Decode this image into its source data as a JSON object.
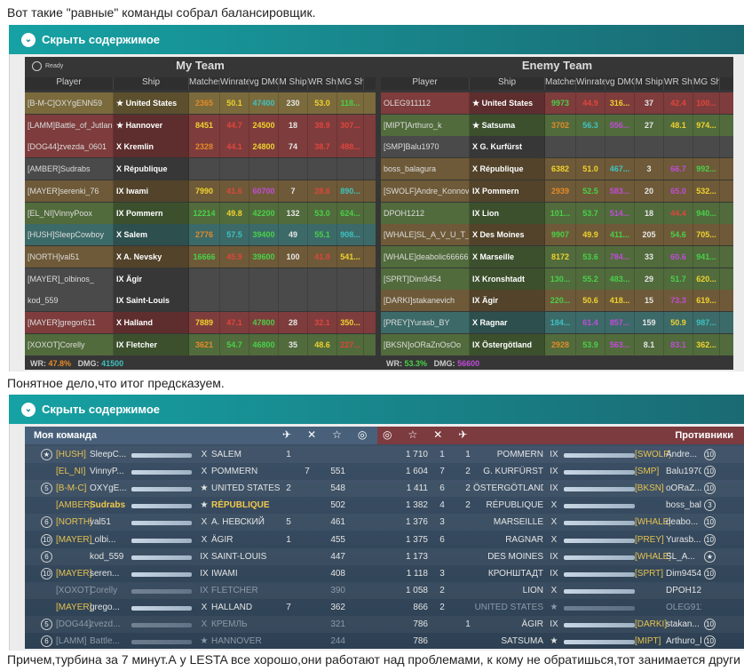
{
  "intro": "Вот такие \"равные\" команды собрал балансировщик.",
  "spoiler_label": "Скрыть содержимое",
  "middle_text": "Понятное дело,что итог предсказуем.",
  "bottom_text": "Причем,турбина за 7 минут.А у LESTA все хорошо,они работают над проблемами, к кому не обратишься,тот занимается други",
  "table1": {
    "ready": "Ready",
    "my_team_title": "My Team",
    "enemy_team_title": "Enemy Team",
    "columns": [
      "Player",
      "Ship",
      "Matches",
      "Winrate",
      "vg DMG",
      "M Ship",
      "WR Ship",
      "MG Shi"
    ],
    "my_footer_wr_label": "WR:",
    "my_footer_wr": "47.8%",
    "my_footer_dmg_label": "DMG:",
    "my_footer_dmg": "41500",
    "enemy_footer_wr_label": "WR:",
    "enemy_footer_wr": "53.3%",
    "enemy_footer_dmg_label": "DMG:",
    "enemy_footer_dmg": "56600",
    "my_rows": [
      {
        "player": "[B-M-C]OXYgENN59",
        "ship": "★ United States",
        "m": "2365",
        "wr": "50.1",
        "dmg": "47400",
        "ms": "230",
        "wrs": "53.0",
        "mg": "118...",
        "bg": "#7a6a3c",
        "wrc": "#f0d22e",
        "dmgc": "#3ec2c0",
        "wrsc": "#f0d22e",
        "mgc": "#49d049",
        "mc": "#e48a2a"
      },
      {
        "player": "[LAMM]Battle_of_Jutland",
        "ship": "★ Hannover",
        "m": "8451",
        "wr": "44.7",
        "dmg": "24500",
        "ms": "18",
        "wrs": "38.9",
        "mg": "307...",
        "bg": "#7e3c3c",
        "wrc": "#e0453d",
        "dmgc": "#f0d22e",
        "wrsc": "#e0453d",
        "mgc": "#e0453d",
        "mc": "#f0d22e"
      },
      {
        "player": "[DOG44]zvezda_0601",
        "ship": "X Kremlin",
        "m": "2328",
        "wr": "44.1",
        "dmg": "24800",
        "ms": "74",
        "wrs": "38.7",
        "mg": "488...",
        "bg": "#7e3c3c",
        "wrc": "#e0453d",
        "dmgc": "#f0d22e",
        "wrsc": "#e0453d",
        "mgc": "#e0453d",
        "mc": "#e48a2a"
      },
      {
        "player": "[AMBER]Sudrabs",
        "ship": "X République",
        "m": "",
        "wr": "",
        "dmg": "",
        "ms": "",
        "wrs": "",
        "mg": "",
        "bg": "#4a4a4a",
        "wrc": "#ccc",
        "dmgc": "#ccc",
        "wrsc": "#ccc",
        "mgc": "#ccc",
        "mc": "#ccc"
      },
      {
        "player": "[MAYER]serenki_76",
        "ship": "IX Iwami",
        "m": "7990",
        "wr": "41.6",
        "dmg": "60700",
        "ms": "7",
        "wrs": "28.6",
        "mg": "890...",
        "bg": "#6e5a38",
        "wrc": "#e0453d",
        "dmgc": "#c04cd8",
        "wrsc": "#e0453d",
        "mgc": "#3ec2c0",
        "mc": "#f0d22e"
      },
      {
        "player": "[EL_NI]VinnyPoox",
        "ship": "IX Pommern",
        "m": "12214",
        "wr": "49.8",
        "dmg": "42200",
        "ms": "132",
        "wrs": "53.0",
        "mg": "624...",
        "bg": "#516b3c",
        "wrc": "#f0d22e",
        "dmgc": "#49d049",
        "wrsc": "#49d049",
        "mgc": "#49d049",
        "mc": "#49d049"
      },
      {
        "player": "[HUSH]SleepCowboy",
        "ship": "X Salem",
        "m": "2776",
        "wr": "57.5",
        "dmg": "39400",
        "ms": "49",
        "wrs": "55.1",
        "mg": "908...",
        "bg": "#3c6a68",
        "wrc": "#3ec2c0",
        "dmgc": "#49d049",
        "wrsc": "#49d049",
        "mgc": "#3ec2c0",
        "mc": "#e48a2a"
      },
      {
        "player": "[NORTH]val51",
        "ship": "X A. Nevsky",
        "m": "16666",
        "wr": "45.9",
        "dmg": "39600",
        "ms": "100",
        "wrs": "41.0",
        "mg": "541...",
        "bg": "#6e5a38",
        "wrc": "#e0453d",
        "dmgc": "#49d049",
        "wrsc": "#e0453d",
        "mgc": "#f0d22e",
        "mc": "#49d049"
      },
      {
        "player": "[MAYER]_olbinos_",
        "ship": "IX Ägir",
        "m": "",
        "wr": "",
        "dmg": "",
        "ms": "",
        "wrs": "",
        "mg": "",
        "bg": "#4a4a4a",
        "wrc": "#ccc",
        "dmgc": "#ccc",
        "wrsc": "#ccc",
        "mgc": "#ccc",
        "mc": "#ccc"
      },
      {
        "player": "kod_559",
        "ship": "IX Saint-Louis",
        "m": "",
        "wr": "",
        "dmg": "",
        "ms": "",
        "wrs": "",
        "mg": "",
        "bg": "#4a4a4a",
        "wrc": "#ccc",
        "dmgc": "#ccc",
        "wrsc": "#ccc",
        "mgc": "#ccc",
        "mc": "#ccc"
      },
      {
        "player": "[MAYER]gregor611",
        "ship": "X Halland",
        "m": "7889",
        "wr": "47.1",
        "dmg": "47800",
        "ms": "28",
        "wrs": "32.1",
        "mg": "350...",
        "bg": "#7e3c3c",
        "wrc": "#e0453d",
        "dmgc": "#49d049",
        "wrsc": "#e0453d",
        "mgc": "#f0d22e",
        "mc": "#f0d22e"
      },
      {
        "player": "[XOXOT]Corelly",
        "ship": "IX Fletcher",
        "m": "3621",
        "wr": "54.7",
        "dmg": "46800",
        "ms": "35",
        "wrs": "48.6",
        "mg": "227...",
        "bg": "#516b3c",
        "wrc": "#49d049",
        "dmgc": "#49d049",
        "wrsc": "#f0d22e",
        "mgc": "#e0453d",
        "mc": "#e48a2a"
      }
    ],
    "enemy_rows": [
      {
        "player": "OLEG911112",
        "ship": "★ United States",
        "m": "9973",
        "wr": "44.9",
        "dmg": "316...",
        "ms": "37",
        "wrs": "42.4",
        "mg": "100...",
        "bg": "#7e3c3c",
        "wrc": "#e0453d",
        "dmgc": "#f0d22e",
        "wrsc": "#e0453d",
        "mgc": "#e0453d",
        "mc": "#49d049"
      },
      {
        "player": "[MIPT]Arthuro_k",
        "ship": "★ Satsuma",
        "m": "3702",
        "wr": "56.3",
        "dmg": "556...",
        "ms": "27",
        "wrs": "48.1",
        "mg": "974...",
        "bg": "#516b3c",
        "wrc": "#3ec2c0",
        "dmgc": "#c04cd8",
        "wrsc": "#f0d22e",
        "mgc": "#f0d22e",
        "mc": "#e48a2a"
      },
      {
        "player": "[SMP]Balu1970",
        "ship": "X G. Kurfürst",
        "m": "",
        "wr": "",
        "dmg": "",
        "ms": "",
        "wrs": "",
        "mg": "",
        "bg": "#4a4a4a",
        "wrc": "#ccc",
        "dmgc": "#ccc",
        "wrsc": "#ccc",
        "mgc": "#ccc",
        "mc": "#ccc"
      },
      {
        "player": "boss_balagura",
        "ship": "X République",
        "m": "6382",
        "wr": "51.0",
        "dmg": "467...",
        "ms": "3",
        "wrs": "66.7",
        "mg": "992...",
        "bg": "#6e5a38",
        "wrc": "#f0d22e",
        "dmgc": "#3ec2c0",
        "wrsc": "#c04cd8",
        "mgc": "#49d049",
        "mc": "#f0d22e"
      },
      {
        "player": "[SWOLF]Andre_Konnov",
        "ship": "IX Pommern",
        "m": "2939",
        "wr": "52.5",
        "dmg": "583...",
        "ms": "20",
        "wrs": "65.0",
        "mg": "532...",
        "bg": "#6e5a38",
        "wrc": "#49d049",
        "dmgc": "#c04cd8",
        "wrsc": "#c04cd8",
        "mgc": "#f0d22e",
        "mc": "#e48a2a"
      },
      {
        "player": "DPOH1212",
        "ship": "IX Lion",
        "m": "101...",
        "wr": "53.7",
        "dmg": "514...",
        "ms": "18",
        "wrs": "44.4",
        "mg": "940...",
        "bg": "#516b3c",
        "wrc": "#49d049",
        "dmgc": "#c04cd8",
        "wrsc": "#e0453d",
        "mgc": "#49d049",
        "mc": "#49d049"
      },
      {
        "player": "[WHALE]SL_A_V_U_T_I_CH",
        "ship": "X Des Moines",
        "m": "9907",
        "wr": "49.9",
        "dmg": "411...",
        "ms": "205",
        "wrs": "54.6",
        "mg": "705...",
        "bg": "#6e5a38",
        "wrc": "#f0d22e",
        "dmgc": "#49d049",
        "wrsc": "#49d049",
        "mgc": "#f0d22e",
        "mc": "#49d049"
      },
      {
        "player": "[WHALE]deabolic666666",
        "ship": "X Marseille",
        "m": "8172",
        "wr": "53.6",
        "dmg": "784...",
        "ms": "33",
        "wrs": "60.6",
        "mg": "941...",
        "bg": "#516b3c",
        "wrc": "#49d049",
        "dmgc": "#c04cd8",
        "wrsc": "#c04cd8",
        "mgc": "#49d049",
        "mc": "#f0d22e"
      },
      {
        "player": "[SPRT]Dim9454",
        "ship": "IX Kronshtadt",
        "m": "130...",
        "wr": "55.2",
        "dmg": "483...",
        "ms": "29",
        "wrs": "51.7",
        "mg": "620...",
        "bg": "#516b3c",
        "wrc": "#49d049",
        "dmgc": "#49d049",
        "wrsc": "#49d049",
        "mgc": "#f0d22e",
        "mc": "#49d049"
      },
      {
        "player": "[DARKI]stakanevich",
        "ship": "IX Ägir",
        "m": "220...",
        "wr": "50.6",
        "dmg": "418...",
        "ms": "15",
        "wrs": "73.3",
        "mg": "619...",
        "bg": "#6e5a38",
        "wrc": "#f0d22e",
        "dmgc": "#f0d22e",
        "wrsc": "#c04cd8",
        "mgc": "#f0d22e",
        "mc": "#49d049"
      },
      {
        "player": "[PREY]Yurasb_BY",
        "ship": "X Ragnar",
        "m": "184...",
        "wr": "61.4",
        "dmg": "857...",
        "ms": "159",
        "wrs": "50.9",
        "mg": "987...",
        "bg": "#3c6a68",
        "wrc": "#c04cd8",
        "dmgc": "#c04cd8",
        "wrsc": "#f0d22e",
        "mgc": "#3ec2c0",
        "mc": "#3ec2c0"
      },
      {
        "player": "[BKSN]oORaZnOsOo",
        "ship": "IX Östergötland",
        "m": "2928",
        "wr": "53.9",
        "dmg": "563...",
        "ms": "8.1",
        "wrs": "83.1",
        "mg": "362...",
        "bg": "#516b3c",
        "wrc": "#49d049",
        "dmgc": "#c04cd8",
        "wrsc": "#c04cd8",
        "mgc": "#f0d22e",
        "mc": "#e48a2a"
      }
    ]
  },
  "table2": {
    "my_team_label": "Моя команда",
    "enemies_label": "Противники",
    "left_rows": [
      {
        "clan": "[HUSH]",
        "name": "SleepC...",
        "tier": "X",
        "ship": "SALEM",
        "k": "1",
        "exp": "",
        "dead": false,
        "badge": "★"
      },
      {
        "clan": "[EL_NI]",
        "name": "VinnyP...",
        "tier": "X",
        "ship": "POMMERN",
        "k": "",
        "exp": "551",
        "dead": false,
        "badge": "",
        "kk": "7"
      },
      {
        "clan": "[B-M-C]",
        "name": "OXYgE...",
        "tier": "★",
        "ship": "UNITED STATES",
        "k": "2",
        "exp": "548",
        "dead": false,
        "badge": "5"
      },
      {
        "clan": "[AMBER]",
        "name": "Sudrabs",
        "tier": "★",
        "ship": "RÉPUBLIQUE",
        "k": "",
        "exp": "502",
        "dead": false,
        "badge": "",
        "hl": true
      },
      {
        "clan": "[NORTH]",
        "name": "val51",
        "tier": "X",
        "ship": "А. НЕВСКИЙ",
        "k": "5",
        "exp": "461",
        "dead": false,
        "badge": "6"
      },
      {
        "clan": "[MAYER]",
        "name": "_olbi...",
        "tier": "X",
        "ship": "ÄGIR",
        "k": "1",
        "exp": "455",
        "dead": false,
        "badge": "10"
      },
      {
        "clan": "",
        "name": "kod_559",
        "tier": "IX",
        "ship": "SAINT-LOUIS",
        "k": "",
        "exp": "447",
        "dead": false,
        "badge": "6"
      },
      {
        "clan": "[MAYER]",
        "name": "seren...",
        "tier": "IX",
        "ship": "IWAMI",
        "k": "",
        "exp": "408",
        "dead": false,
        "badge": "10"
      },
      {
        "clan": "[XOXOT]",
        "name": "Corelly",
        "tier": "IX",
        "ship": "FLETCHER",
        "k": "",
        "exp": "390",
        "dead": true,
        "badge": ""
      },
      {
        "clan": "[MAYER]",
        "name": "grego...",
        "tier": "X",
        "ship": "HALLAND",
        "k": "7",
        "exp": "362",
        "dead": false,
        "badge": ""
      },
      {
        "clan": "[DOG44]",
        "name": "zvezd...",
        "tier": "X",
        "ship": "КРЕМЛЬ",
        "k": "",
        "exp": "321",
        "dead": true,
        "badge": "5"
      },
      {
        "clan": "[LAMM]",
        "name": "Battle...",
        "tier": "★",
        "ship": "HANNOVER",
        "k": "",
        "exp": "244",
        "dead": true,
        "badge": "6"
      }
    ],
    "left_k2": [
      "",
      "7",
      "",
      "",
      "",
      "",
      "",
      "",
      "",
      "",
      "",
      ""
    ],
    "right_rows": [
      {
        "exp": "1 710",
        "k1": "1",
        "k2": "1",
        "ship": "POMMERN",
        "tier": "IX",
        "clan": "[SWOLF]",
        "name": "Andre...",
        "dead": false,
        "badge": "10"
      },
      {
        "exp": "1 604",
        "k1": "7",
        "k2": "2",
        "ship": "G. KURFÜRST",
        "tier": "IX",
        "clan": "[SMP]",
        "name": "Balu1970",
        "dead": false,
        "badge": "10"
      },
      {
        "exp": "1 411",
        "k1": "6",
        "k2": "2",
        "ship": "ÖSTERGÖTLAND",
        "tier": "IX",
        "clan": "[BKSN]",
        "name": "oORaZ...",
        "dead": false,
        "badge": "10"
      },
      {
        "exp": "1 382",
        "k1": "4",
        "k2": "2",
        "ship": "RÉPUBLIQUE",
        "tier": "X",
        "clan": "",
        "name": "boss_balagura",
        "dead": false,
        "badge": "3"
      },
      {
        "exp": "1 376",
        "k1": "3",
        "k2": "",
        "ship": "MARSEILLE",
        "tier": "X",
        "clan": "[WHALE]",
        "name": "deabo...",
        "dead": false,
        "badge": "10"
      },
      {
        "exp": "1 375",
        "k1": "6",
        "k2": "",
        "ship": "RAGNAR",
        "tier": "X",
        "clan": "[PREY]",
        "name": "Yurasb...",
        "dead": false,
        "badge": "10"
      },
      {
        "exp": "1 173",
        "k1": "",
        "k2": "",
        "ship": "DES MOINES",
        "tier": "IX",
        "clan": "[WHALE]",
        "name": "SL_A...",
        "dead": false,
        "badge": "★"
      },
      {
        "exp": "1 118",
        "k1": "3",
        "k2": "",
        "ship": "КРОНШТАДТ",
        "tier": "IX",
        "clan": "[SPRT]",
        "name": "Dim9454",
        "dead": false,
        "badge": "10"
      },
      {
        "exp": "1 058",
        "k1": "2",
        "k2": "",
        "ship": "LION",
        "tier": "X",
        "clan": "",
        "name": "DPOH1212",
        "dead": false,
        "badge": ""
      },
      {
        "exp": "866",
        "k1": "2",
        "k2": "",
        "ship": "UNITED STATES",
        "tier": "★",
        "clan": "",
        "name": "OLEG911112",
        "dead": true,
        "badge": ""
      },
      {
        "exp": "786",
        "k1": "",
        "k2": "1",
        "ship": "ÄGIR",
        "tier": "IX",
        "clan": "[DARKI]",
        "name": "stakan...",
        "dead": false,
        "badge": "10"
      },
      {
        "exp": "786",
        "k1": "",
        "k2": "",
        "ship": "SATSUMA",
        "tier": "★",
        "clan": "[MIPT]",
        "name": "Arthuro_k",
        "dead": false,
        "badge": "10"
      }
    ]
  },
  "colors": {
    "accent": "#18868c",
    "my_wr": "#e48a2a",
    "my_dmg": "#3ec2c0",
    "enemy_wr": "#49d049",
    "enemy_dmg": "#c04cd8"
  }
}
